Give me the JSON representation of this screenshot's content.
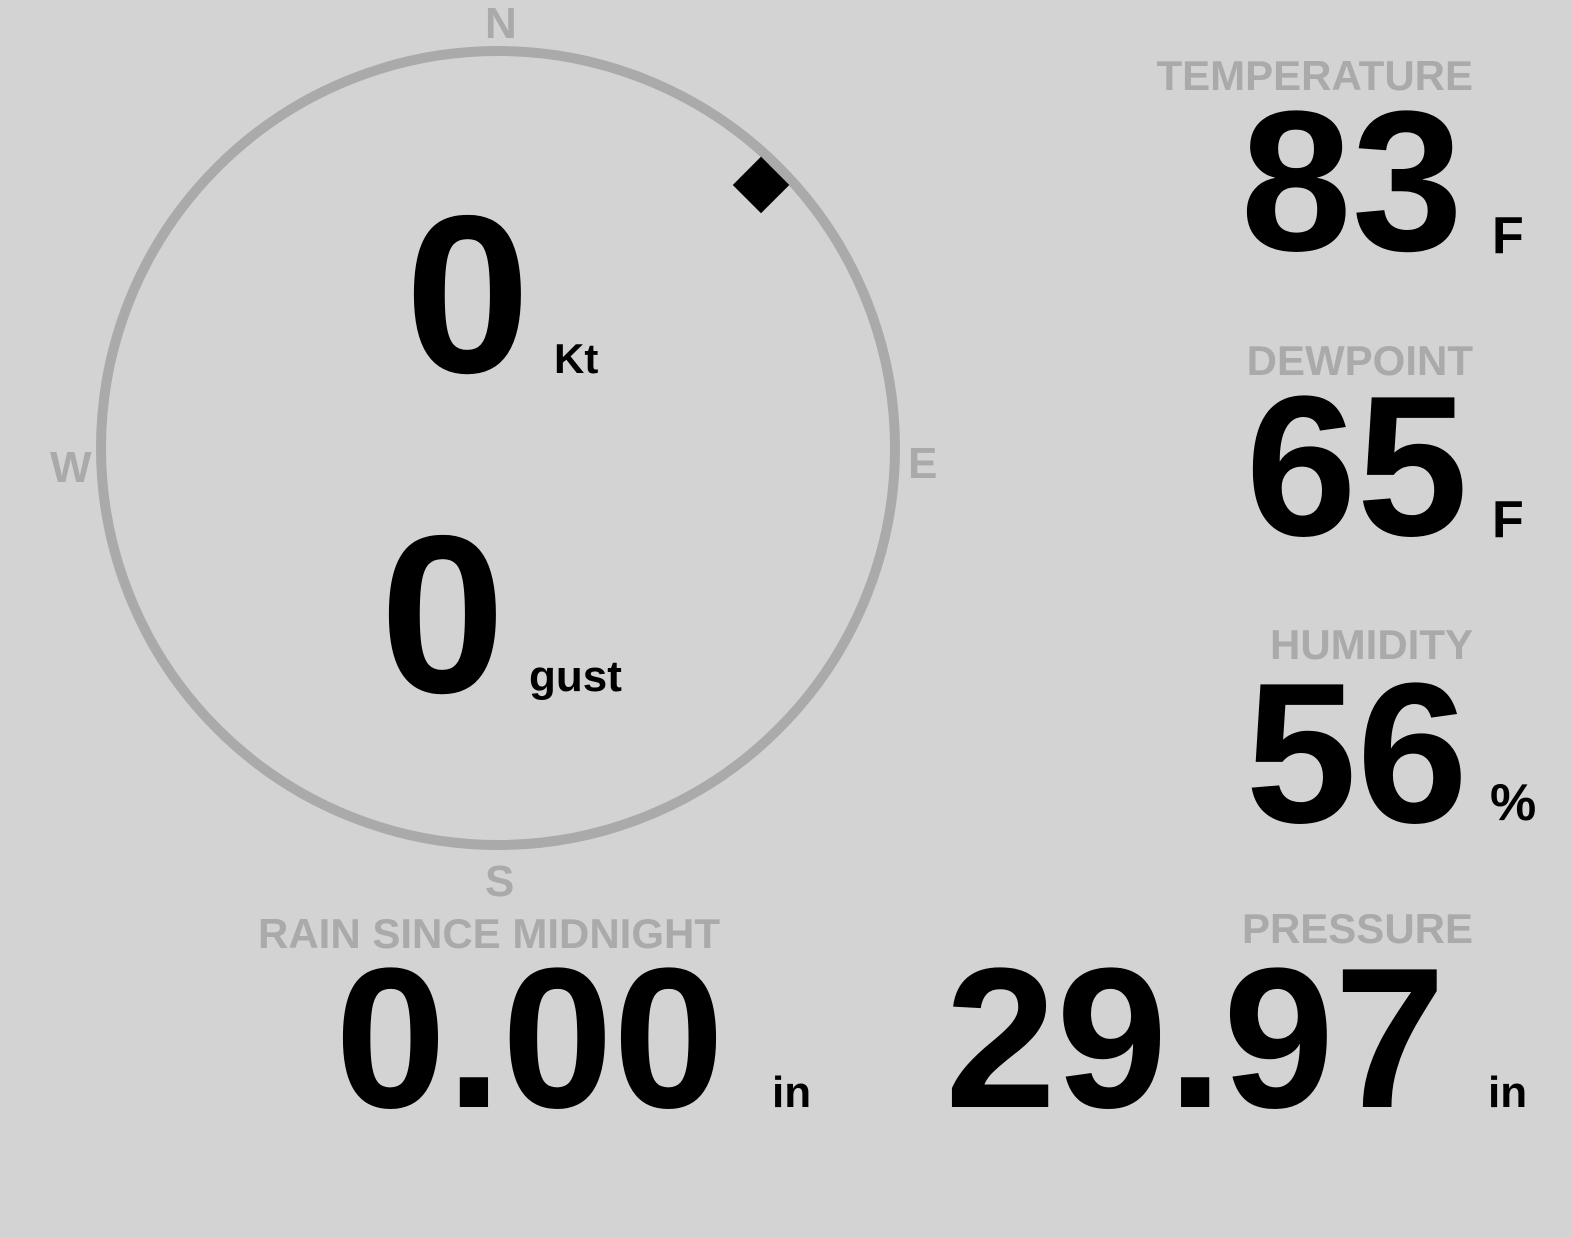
{
  "wind": {
    "speed": "0",
    "speed_unit": "Kt",
    "gust": "0",
    "gust_unit": "gust",
    "direction_deg": 45,
    "compass": {
      "n": "N",
      "e": "E",
      "s": "S",
      "w": "W"
    },
    "ring_color": "#aaaaaa"
  },
  "temperature": {
    "label": "TEMPERATURE",
    "value": "83",
    "unit": "F"
  },
  "dewpoint": {
    "label": "DEWPOINT",
    "value": "65",
    "unit": "F"
  },
  "humidity": {
    "label": "HUMIDITY",
    "value": "56",
    "unit": "%"
  },
  "pressure": {
    "label": "PRESSURE",
    "value": "29.97",
    "unit": "in"
  },
  "rain": {
    "label": "RAIN SINCE MIDNIGHT",
    "value": "0.00",
    "unit": "in"
  },
  "colors": {
    "background": "#d3d3d3",
    "label": "#aaaaaa",
    "value": "#000000"
  }
}
